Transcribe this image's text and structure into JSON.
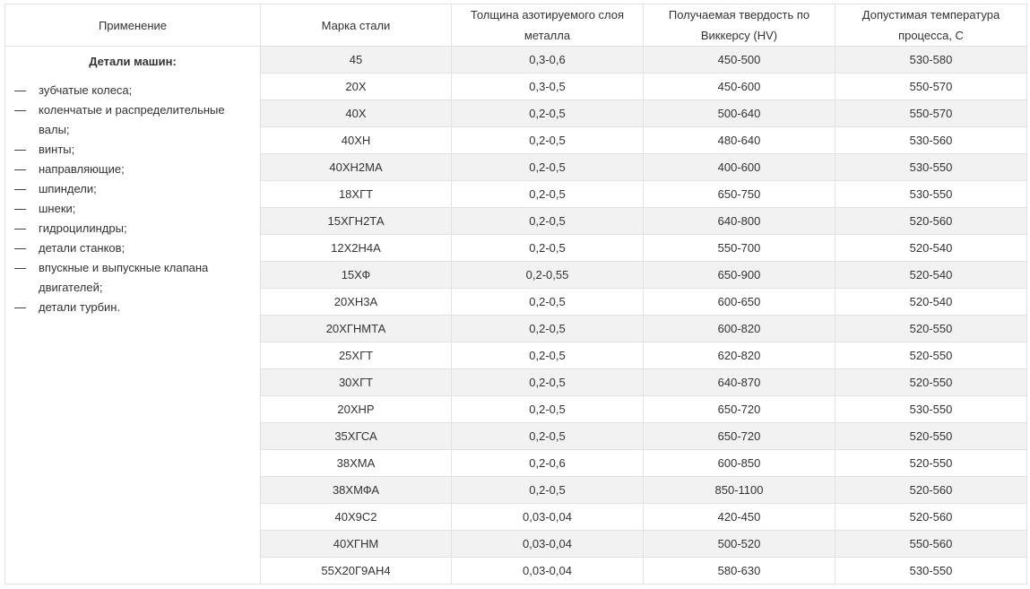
{
  "header": [
    "Применение",
    "Марка стали",
    "Толщина азотируемого слоя металла",
    "Получаемая твердость по Виккерсу (HV)",
    "Допустимая температура процесса, С"
  ],
  "application": {
    "title": "Детали машин:",
    "items": [
      "зубчатые колеса;",
      "коленчатые и распределительные валы;",
      "винты;",
      "направляющие;",
      "шпиндели;",
      "шнеки;",
      "гидроцилиндры;",
      "детали станков;",
      "впускные и выпускные клапана двигателей;",
      "детали турбин."
    ]
  },
  "rows": [
    [
      "45",
      "0,3-0,6",
      "450-500",
      "530-580"
    ],
    [
      "20Х",
      "0,3-0,5",
      "450-600",
      "550-570"
    ],
    [
      "40Х",
      "0,2-0,5",
      "500-640",
      "550-570"
    ],
    [
      "40ХН",
      "0,2-0,5",
      "480-640",
      "530-560"
    ],
    [
      "40ХН2МА",
      "0,2-0,5",
      "400-600",
      "530-550"
    ],
    [
      "18ХГТ",
      "0,2-0,5",
      "650-750",
      "530-550"
    ],
    [
      "15ХГН2ТА",
      "0,2-0,5",
      "640-800",
      "520-560"
    ],
    [
      "12Х2Н4А",
      "0,2-0,5",
      "550-700",
      "520-540"
    ],
    [
      "15ХФ",
      "0,2-0,55",
      "650-900",
      "520-540"
    ],
    [
      "20ХН3А",
      "0,2-0,5",
      "600-650",
      "520-540"
    ],
    [
      "20ХГНМТА",
      "0,2-0,5",
      "600-820",
      "520-550"
    ],
    [
      "25ХГТ",
      "0,2-0,5",
      "620-820",
      "520-550"
    ],
    [
      "30ХГТ",
      "0,2-0,5",
      "640-870",
      "520-550"
    ],
    [
      "20ХНР",
      "0,2-0,5",
      "650-720",
      "530-550"
    ],
    [
      "35ХГСА",
      "0,2-0,5",
      "650-720",
      "520-550"
    ],
    [
      "38ХМА",
      "0,2-0,6",
      "600-850",
      "520-550"
    ],
    [
      "38ХМФА",
      "0,2-0,5",
      "850-1100",
      "520-560"
    ],
    [
      "40Х9С2",
      "0,03-0,04",
      "420-450",
      "520-560"
    ],
    [
      "40ХГНМ",
      "0,03-0,04",
      "500-520",
      "550-560"
    ],
    [
      "55Х20Г9АН4",
      "0,03-0,04",
      "580-630",
      "530-550"
    ]
  ]
}
